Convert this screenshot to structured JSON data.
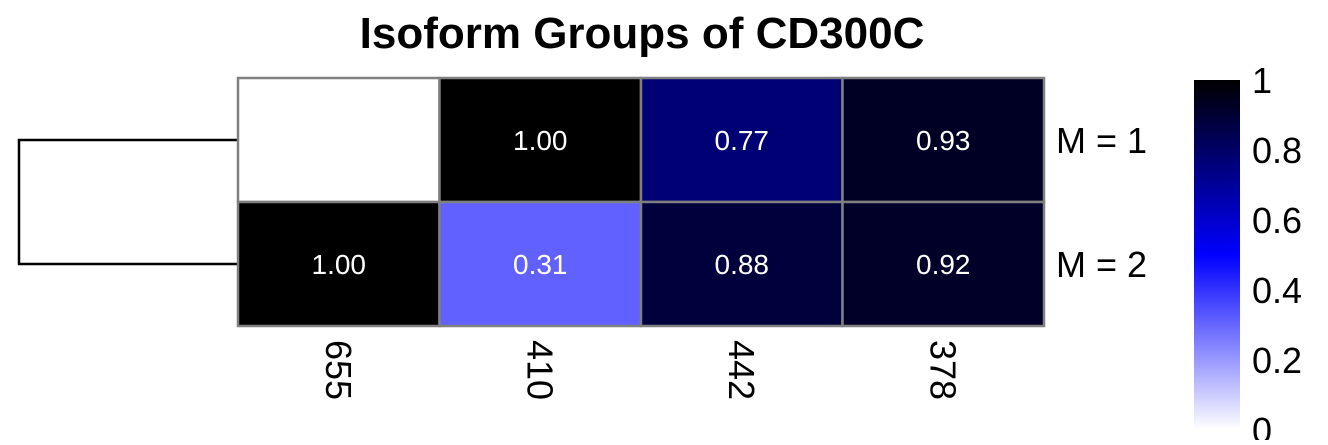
{
  "chart_data": {
    "type": "heatmap",
    "title": "Isoform Groups of CD300C",
    "columns": [
      "655",
      "410",
      "442",
      "378"
    ],
    "rows": [
      "M = 1",
      "M = 2"
    ],
    "values": [
      [
        null,
        1.0,
        0.77,
        0.93
      ],
      [
        1.0,
        0.31,
        0.88,
        0.92
      ]
    ],
    "cell_labels": [
      [
        "",
        "1.00",
        "0.77",
        "0.93"
      ],
      [
        "1.00",
        "0.31",
        "0.88",
        "0.92"
      ]
    ],
    "color_scale": {
      "range": [
        0,
        1
      ],
      "colors": [
        "#ffffff",
        "#0000ff",
        "#000000"
      ],
      "ticks": [
        "0",
        "0.2",
        "0.4",
        "0.6",
        "0.8",
        "1"
      ]
    },
    "grid_color": "#808080",
    "dendrogram": "rows"
  }
}
